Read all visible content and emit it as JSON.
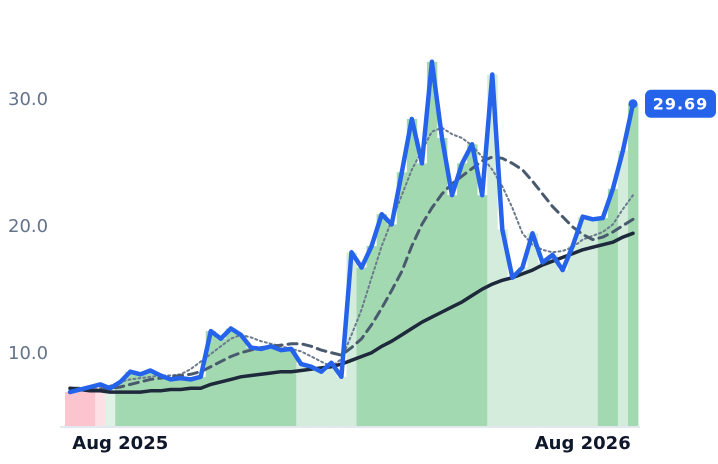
{
  "chart_data": {
    "type": "line",
    "categories": [
      null,
      null,
      null,
      null,
      null,
      "Aug 2025",
      null,
      null,
      null,
      null,
      null,
      null,
      null,
      null,
      null,
      null,
      null,
      null,
      null,
      null,
      null,
      null,
      null,
      null,
      null,
      null,
      null,
      null,
      null,
      null,
      null,
      null,
      null,
      null,
      null,
      null,
      null,
      null,
      null,
      null,
      null,
      null,
      null,
      null,
      null,
      null,
      null,
      null,
      null,
      null,
      null,
      "Aug 2026",
      null,
      null,
      null,
      null,
      null
    ],
    "series": [
      {
        "color": "#2563eb",
        "style": "solid",
        "values": [
          7.0,
          7.2,
          7.4,
          7.6,
          7.3,
          7.8,
          8.6,
          8.4,
          8.7,
          8.3,
          8.0,
          8.1,
          8.0,
          8.2,
          11.8,
          11.2,
          12.0,
          11.5,
          10.5,
          10.4,
          10.6,
          10.3,
          10.4,
          9.2,
          9.0,
          8.6,
          9.3,
          8.2,
          18.0,
          16.8,
          18.5,
          21.0,
          20.2,
          24.3,
          28.5,
          25.0,
          33.0,
          27.0,
          22.5,
          25.0,
          26.5,
          22.5,
          32.0,
          19.8,
          16.0,
          16.8,
          19.5,
          17.2,
          17.8,
          16.6,
          18.5,
          20.8,
          20.6,
          20.7,
          23.0,
          26.0,
          29.69
        ]
      },
      {
        "color": "#6b7a8c",
        "style": "dotted",
        "values": [
          7.0,
          7.1,
          7.2,
          7.3,
          7.5,
          7.8,
          8.0,
          8.1,
          8.2,
          8.3,
          8.3,
          8.4,
          8.8,
          9.4,
          10.0,
          10.6,
          11.2,
          11.5,
          11.3,
          11.0,
          10.8,
          10.6,
          10.4,
          10.2,
          9.8,
          9.4,
          9.0,
          9.6,
          11.5,
          13.5,
          16.0,
          18.5,
          20.5,
          22.5,
          24.5,
          26.0,
          27.5,
          27.8,
          27.3,
          27.0,
          26.4,
          25.5,
          24.5,
          23.2,
          21.5,
          19.5,
          18.6,
          18.2,
          18.0,
          18.1,
          18.4,
          19.0,
          19.3,
          19.6,
          20.2,
          21.4,
          22.5
        ]
      },
      {
        "color": "#4a5a6e",
        "style": "dashed",
        "values": [
          7.3,
          7.3,
          7.2,
          7.2,
          7.3,
          7.4,
          7.6,
          7.8,
          8.0,
          8.1,
          8.2,
          8.3,
          8.4,
          8.6,
          9.0,
          9.4,
          9.8,
          10.1,
          10.3,
          10.5,
          10.6,
          10.7,
          10.8,
          10.8,
          10.6,
          10.3,
          10.1,
          9.9,
          10.5,
          11.2,
          12.3,
          13.6,
          15.0,
          16.5,
          18.5,
          20.2,
          21.5,
          22.6,
          23.4,
          24.0,
          24.6,
          25.2,
          25.5,
          25.4,
          25.0,
          24.5,
          23.6,
          22.6,
          21.6,
          20.8,
          20.0,
          19.4,
          19.0,
          19.2,
          19.6,
          20.1,
          20.6
        ]
      },
      {
        "color": "#1e293b",
        "style": "solid",
        "values": [
          7.3,
          7.2,
          7.1,
          7.1,
          7.0,
          7.0,
          7.0,
          7.0,
          7.1,
          7.1,
          7.2,
          7.2,
          7.3,
          7.3,
          7.6,
          7.8,
          8.0,
          8.2,
          8.3,
          8.4,
          8.5,
          8.6,
          8.6,
          8.7,
          8.8,
          8.9,
          9.0,
          9.2,
          9.5,
          9.8,
          10.1,
          10.6,
          11.0,
          11.5,
          12.0,
          12.5,
          12.9,
          13.3,
          13.7,
          14.1,
          14.6,
          15.1,
          15.5,
          15.8,
          16.0,
          16.3,
          16.6,
          17.0,
          17.3,
          17.6,
          17.9,
          18.2,
          18.4,
          18.6,
          18.8,
          19.2,
          19.5
        ]
      }
    ],
    "bar_colors": [
      "#fbc4cf",
      "#fbc4cf",
      "#fbc4cf",
      "#fde0e6",
      "#dff2e5",
      "#a3d9b1",
      "#a3d9b1",
      "#a3d9b1",
      "#a3d9b1",
      "#a3d9b1",
      "#a3d9b1",
      "#a3d9b1",
      "#a3d9b1",
      "#a3d9b1",
      "#a3d9b1",
      "#a3d9b1",
      "#a3d9b1",
      "#a3d9b1",
      "#a3d9b1",
      "#a3d9b1",
      "#a3d9b1",
      "#a3d9b1",
      "#a3d9b1",
      "#d3ecdb",
      "#d3ecdb",
      "#d3ecdb",
      "#d3ecdb",
      "#d3ecdb",
      "#d3ecdb",
      "#a3d9b1",
      "#a3d9b1",
      "#a3d9b1",
      "#a3d9b1",
      "#a3d9b1",
      "#a3d9b1",
      "#a3d9b1",
      "#a3d9b1",
      "#a3d9b1",
      "#a3d9b1",
      "#a3d9b1",
      "#a3d9b1",
      "#a3d9b1",
      "#d3ecdb",
      "#d3ecdb",
      "#d3ecdb",
      "#d3ecdb",
      "#d3ecdb",
      "#d3ecdb",
      "#d3ecdb",
      "#d3ecdb",
      "#d3ecdb",
      "#d3ecdb",
      "#d3ecdb",
      "#a3d9b1",
      "#a3d9b1",
      "#d3ecdb",
      "#a3d9b1"
    ],
    "ylim": [
      4.25,
      35.5
    ],
    "yticks": [
      {
        "value": 10,
        "label": "10.0"
      },
      {
        "value": 20,
        "label": "20.0"
      },
      {
        "value": 30,
        "label": "30.0"
      }
    ]
  }
}
